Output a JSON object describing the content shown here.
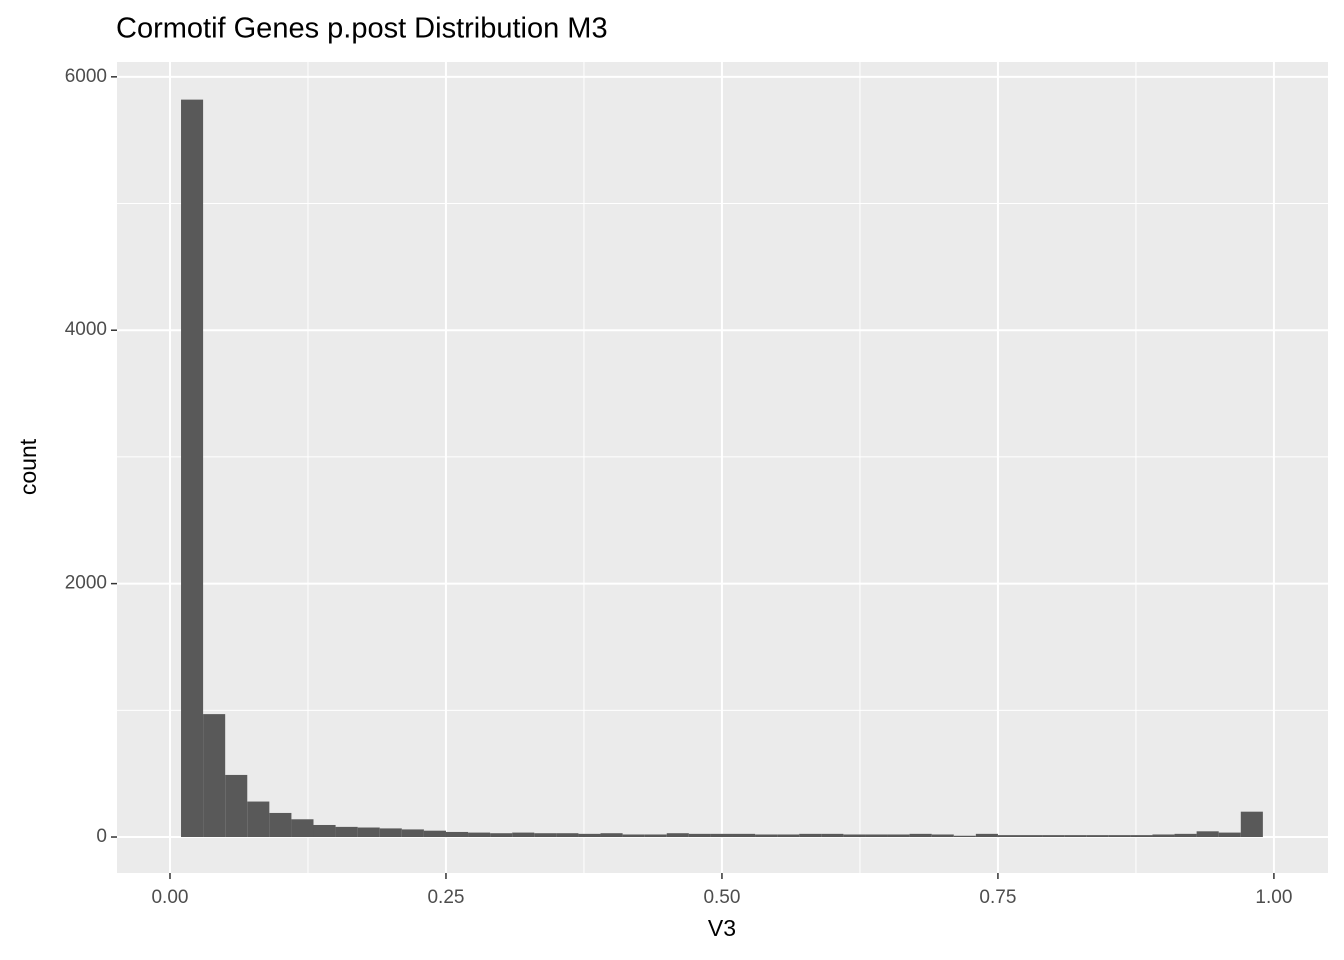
{
  "chart_data": {
    "type": "histogram",
    "title": "Cormotif Genes p.post Distribution M3",
    "x_label": "V3",
    "y_label": "count",
    "color": "#595959",
    "bins": [
      0.01,
      0.03,
      0.05,
      0.07,
      0.09,
      0.11,
      0.13,
      0.15,
      0.17,
      0.19,
      0.21,
      0.23,
      0.25,
      0.27,
      0.29,
      0.31,
      0.33,
      0.35,
      0.37,
      0.39,
      0.41,
      0.43,
      0.45,
      0.47,
      0.49,
      0.51,
      0.53,
      0.55,
      0.57,
      0.59,
      0.61,
      0.63,
      0.65,
      0.67,
      0.69,
      0.71,
      0.73,
      0.75,
      0.77,
      0.79,
      0.81,
      0.83,
      0.85,
      0.87,
      0.89,
      0.91,
      0.93,
      0.95,
      0.97,
      0.99
    ],
    "values": [
      5820,
      970,
      490,
      280,
      190,
      140,
      95,
      80,
      75,
      68,
      60,
      50,
      40,
      35,
      30,
      35,
      30,
      30,
      25,
      30,
      20,
      20,
      30,
      25,
      25,
      25,
      20,
      20,
      25,
      25,
      20,
      20,
      20,
      25,
      20,
      10,
      25,
      15,
      15,
      15,
      15,
      15,
      15,
      15,
      20,
      25,
      45,
      35,
      200
    ],
    "xlim": [
      -0.048,
      1.049
    ],
    "ylim": [
      -284,
      6117
    ],
    "xticks": [
      {
        "value": 0,
        "label": "0.00"
      },
      {
        "value": 0.25,
        "label": "0.25"
      },
      {
        "value": 0.5,
        "label": "0.50"
      },
      {
        "value": 0.75,
        "label": "0.75"
      },
      {
        "value": 1,
        "label": "1.00"
      }
    ],
    "yticks": [
      0,
      2000,
      4000,
      6000
    ],
    "grid": true
  }
}
